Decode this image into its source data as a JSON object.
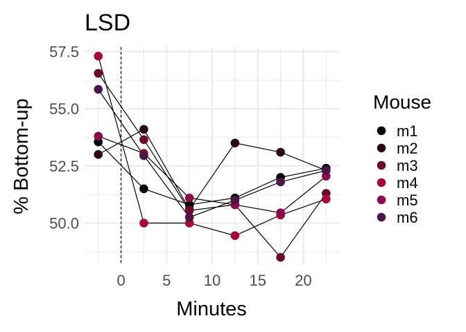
{
  "chart_data": {
    "type": "line",
    "title": "LSD",
    "xlabel": "Minutes",
    "ylabel": "% Bottom-up",
    "xlim": [
      -4,
      24
    ],
    "ylim": [
      48.2,
      57.7
    ],
    "xticks": [
      0,
      5,
      10,
      15,
      20
    ],
    "xtick_labels": [
      "0",
      "5",
      "10",
      "15",
      "20"
    ],
    "yticks": [
      50.0,
      52.5,
      55.0,
      57.5
    ],
    "ytick_labels": [
      "50.0",
      "52.5",
      "55.0",
      "57.5"
    ],
    "vline_x": 0,
    "grid": true,
    "legend": {
      "title": "Mouse",
      "position": "right"
    },
    "x": [
      -2.5,
      2.5,
      7.5,
      12.5,
      17.5,
      22.5
    ],
    "series": [
      {
        "name": "m1",
        "color": "#000000",
        "values": [
          53.55,
          51.5,
          50.8,
          51.1,
          52.0,
          52.4
        ]
      },
      {
        "name": "m2",
        "color": "#2a0a12",
        "values": [
          53.0,
          54.1,
          50.6,
          53.5,
          53.1,
          52.3
        ]
      },
      {
        "name": "m3",
        "color": "#6b0a2a",
        "values": [
          56.55,
          53.65,
          50.55,
          50.8,
          48.5,
          51.3
        ]
      },
      {
        "name": "m4",
        "color": "#a8073e",
        "values": [
          57.3,
          50.0,
          50.0,
          49.45,
          50.35,
          51.05
        ]
      },
      {
        "name": "m5",
        "color": "#8a0b49",
        "values": [
          53.8,
          53.05,
          51.1,
          50.8,
          50.45,
          52.05
        ]
      },
      {
        "name": "m6",
        "color": "#4f1448",
        "values": [
          55.85,
          52.95,
          50.25,
          51.0,
          51.8,
          52.3
        ]
      }
    ]
  }
}
